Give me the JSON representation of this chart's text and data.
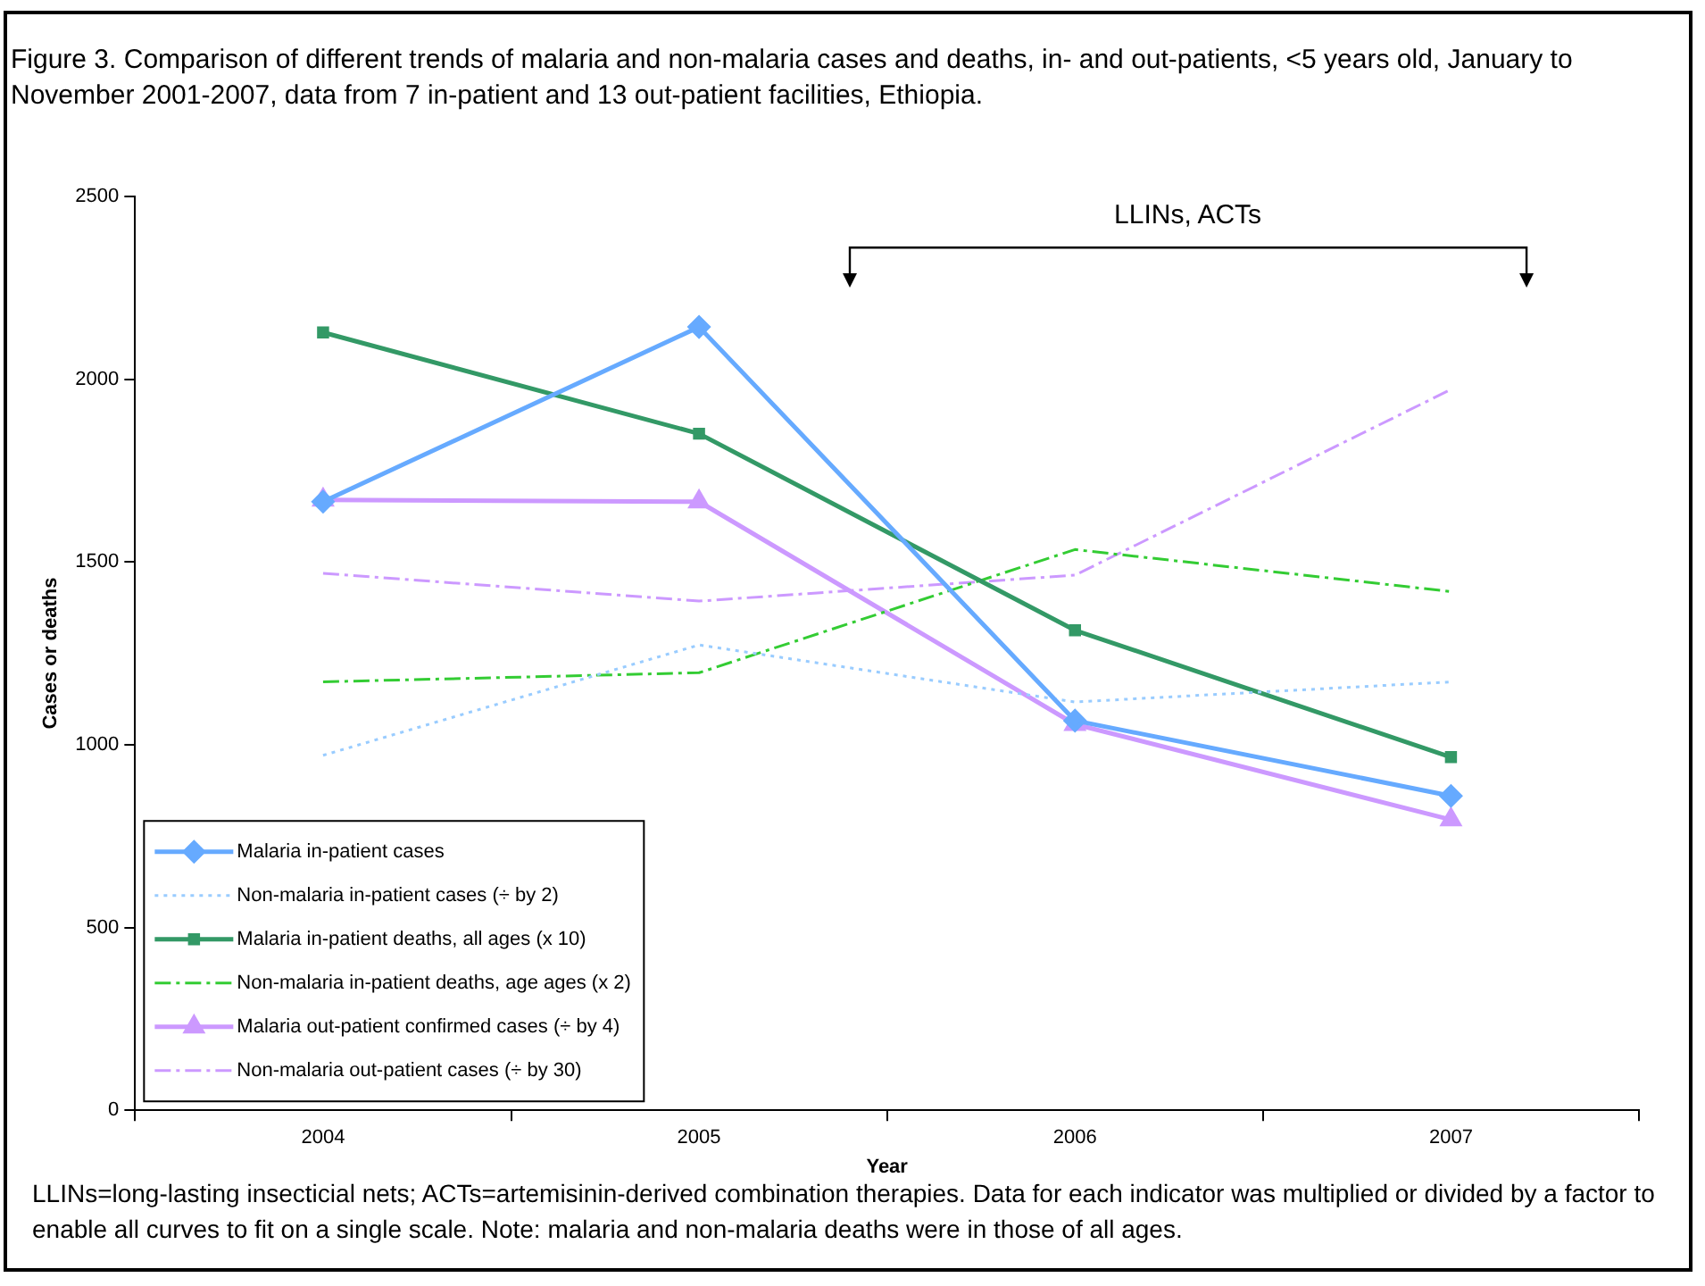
{
  "chart_data": {
    "type": "line",
    "title": "Figure 3.  Comparison of different trends of malaria and non-malaria cases and deaths, in- and out-patients, <5 years old, January to November 2001-2007, data from 7 in-patient and 13 out-patient facilities, Ethiopia.",
    "xlabel": "Year",
    "ylabel": "Cases or deaths",
    "categories": [
      "2004",
      "2005",
      "2006",
      "2007"
    ],
    "series": [
      {
        "name": "Malaria in-patient cases",
        "color": "#66aaff",
        "marker": "diamond",
        "line_style": "solid",
        "values": [
          1665,
          2143,
          1066,
          860
        ]
      },
      {
        "name": "Non-malaria in-patient cases (÷ by 2)",
        "color": "#99ccff",
        "marker": "none",
        "line_style": "dotted",
        "values": [
          971,
          1273,
          1117,
          1172
        ]
      },
      {
        "name": "Malaria in-patient deaths, all ages (x 10)",
        "color": "#339966",
        "marker": "square",
        "line_style": "solid",
        "values": [
          2128,
          1851,
          1313,
          966
        ]
      },
      {
        "name": "Non-malaria in-patient deaths, age ages (x 2)",
        "color": "#33cc33",
        "marker": "none",
        "line_style": "dashed",
        "values": [
          1172,
          1197,
          1534,
          1419
        ]
      },
      {
        "name": "Malaria out-patient confirmed cases (÷ by 4)",
        "color": "#cc99ff",
        "marker": "triangle",
        "line_style": "solid",
        "values": [
          1670,
          1665,
          1056,
          795
        ]
      },
      {
        "name": "Non-malaria out-patient cases (÷ by 30)",
        "color": "#cc99ff",
        "marker": "none",
        "line_style": "dashed",
        "values": [
          1469,
          1393,
          1464,
          1972
        ]
      }
    ],
    "ylim": [
      0,
      2500
    ],
    "yticks": [
      0,
      500,
      1000,
      1500,
      2000,
      2500
    ],
    "grid": false,
    "legend": "bottom left",
    "annotations": [
      "LLINs, ACTs",
      "LLINs=long-lasting insecticial nets; ACTs=artemisinin-derived combination therapies.  Data for each indicator was multiplied or divided by a factor to enable all curves to fit on a single scale. Note: malaria and non-malaria deaths were in those of all ages."
    ]
  }
}
